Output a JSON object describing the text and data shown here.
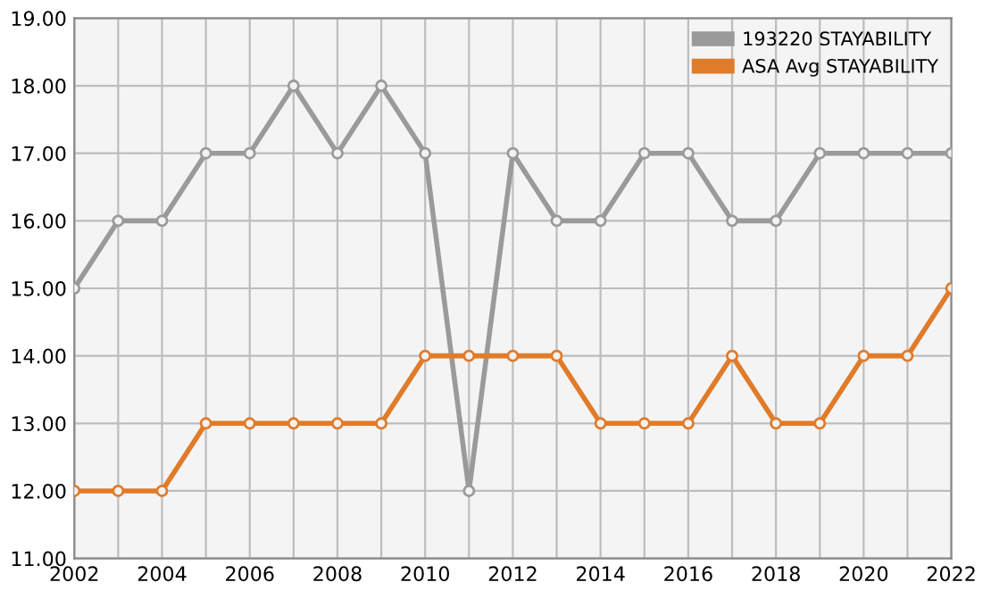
{
  "chart_data": {
    "type": "line",
    "x": [
      2002,
      2003,
      2004,
      2005,
      2006,
      2007,
      2008,
      2009,
      2010,
      2011,
      2012,
      2013,
      2014,
      2015,
      2016,
      2017,
      2018,
      2019,
      2020,
      2021,
      2022
    ],
    "series": [
      {
        "name": "193220 STAYABILITY",
        "color": "#9a9a9a",
        "values": [
          15,
          16,
          16,
          17,
          17,
          18,
          17,
          18,
          17,
          12,
          17,
          16,
          16,
          17,
          17,
          16,
          16,
          17,
          17,
          17,
          17
        ]
      },
      {
        "name": "ASA Avg STAYABILITY",
        "color": "#e07b2a",
        "values": [
          12,
          12,
          12,
          13,
          13,
          13,
          13,
          13,
          14,
          14,
          14,
          14,
          13,
          13,
          13,
          14,
          13,
          13,
          14,
          14,
          15
        ]
      }
    ],
    "xlim": [
      2002,
      2022
    ],
    "xticks": [
      2002,
      {
        "value": 2003,
        "label": null
      },
      2004,
      {
        "value": 2005,
        "label": null
      },
      2006,
      {
        "value": 2007,
        "label": null
      },
      2008,
      {
        "value": 2009,
        "label": null
      },
      2010,
      {
        "value": 2011,
        "label": null
      },
      2012,
      {
        "value": 2013,
        "label": null
      },
      2014,
      {
        "value": 2015,
        "label": null
      },
      2016,
      {
        "value": 2017,
        "label": null
      },
      2018,
      {
        "value": 2019,
        "label": null
      },
      2020,
      {
        "value": 2021,
        "label": null
      },
      2022
    ],
    "ylim": [
      11,
      19
    ],
    "yticks": [
      {
        "value": 11,
        "label": "11.00"
      },
      {
        "value": 12,
        "label": "12.00"
      },
      {
        "value": 13,
        "label": "13.00"
      },
      {
        "value": 14,
        "label": "14.00"
      },
      {
        "value": 15,
        "label": "15.00"
      },
      {
        "value": 16,
        "label": "16.00"
      },
      {
        "value": 17,
        "label": "17.00"
      },
      {
        "value": 18,
        "label": "18.00"
      },
      {
        "value": 19,
        "label": "19.00"
      }
    ],
    "grid": true,
    "legend": "top right",
    "marker": "circle",
    "line_style": "solid"
  }
}
